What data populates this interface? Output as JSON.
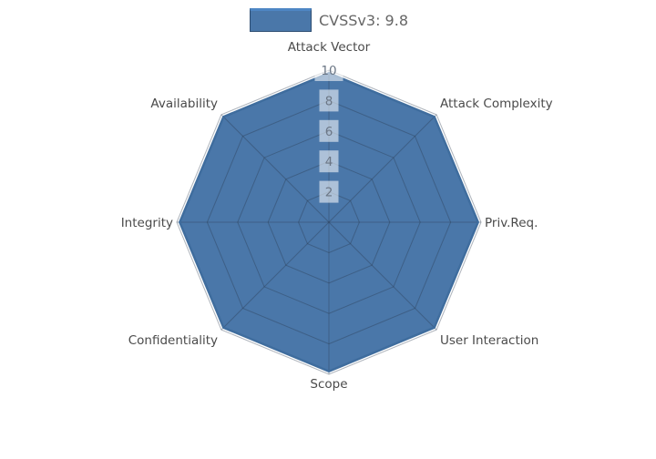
{
  "legend": {
    "items": [
      {
        "label": "CVSSv3: 9.8",
        "swatch_color": "#4a77a9"
      }
    ]
  },
  "colors": {
    "series_fill": "#4a77a9",
    "series_line": "#3f6d9e",
    "grid_line": "rgba(42,58,78,0.38)",
    "tick_text": "#6b7685",
    "tick_bg": "rgba(255,255,255,0.55)",
    "axis_label": "#4a4a4a",
    "legend_text": "#666666",
    "background": "#ffffff"
  },
  "chart_data": {
    "type": "radar",
    "title": "",
    "categories": [
      "Attack Vector",
      "Attack Complexity",
      "Priv.Req.",
      "User Interaction",
      "Scope",
      "Confidentiality",
      "Integrity",
      "Availability"
    ],
    "series": [
      {
        "name": "CVSSv3: 9.8",
        "values": [
          9.8,
          9.8,
          9.8,
          9.8,
          9.8,
          9.8,
          9.8,
          9.8
        ]
      }
    ],
    "range": [
      0,
      10
    ],
    "radial_ticks": [
      2,
      4,
      6,
      8,
      10
    ],
    "grid": true,
    "grid_shape": "polygon",
    "start_axis": "top",
    "direction": "clockwise",
    "legend_position": "top-center"
  }
}
